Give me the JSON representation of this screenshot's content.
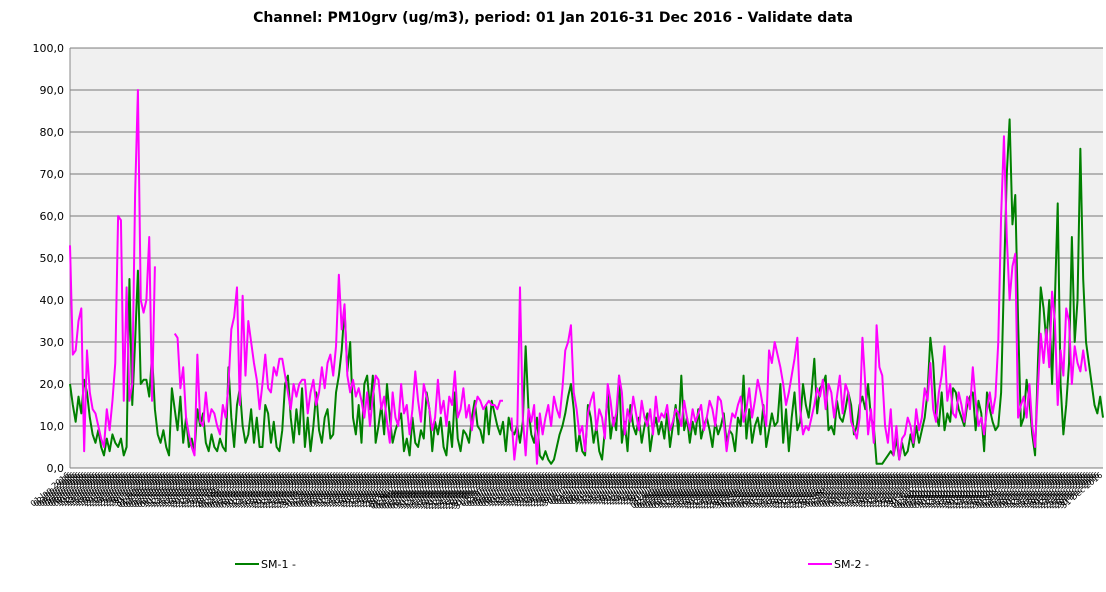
{
  "chart_data": {
    "type": "line",
    "title": "Channel: PM10grv (ug/m3), period: 01 Jan 2016-31 Dec 2016 - Validate data",
    "ylim": [
      0,
      100
    ],
    "yticks": [
      {
        "value": 0,
        "label": "0,0"
      },
      {
        "value": 10,
        "label": "10,0"
      },
      {
        "value": 20,
        "label": "20,0"
      },
      {
        "value": 30,
        "label": "30,0"
      },
      {
        "value": 40,
        "label": "40,0"
      },
      {
        "value": 50,
        "label": "50,0"
      },
      {
        "value": 60,
        "label": "60,0"
      },
      {
        "value": 70,
        "label": "70,0"
      },
      {
        "value": 80,
        "label": "80,0"
      },
      {
        "value": 90,
        "label": "90,0"
      },
      {
        "value": 100,
        "label": "100,0"
      }
    ],
    "grid": true,
    "legend": "bottom",
    "categories": [
      "01 Jan 2016",
      "02 Jan 2016",
      "03 Jan 2016",
      "04 Jan 2016",
      "05 Jan 2016",
      "06 Jan 2016",
      "07 Jan 2016",
      "08 Jan 2016",
      "09 Jan 2016",
      "10 Jan 2016",
      "11 Jan 2016",
      "12 Jan 2016",
      "13 Jan 2016",
      "14 Jan 2016",
      "15 Jan 2016",
      "16 Jan 2016",
      "17 Jan 2016",
      "18 Jan 2016",
      "19 Jan 2016",
      "20 Jan 2016",
      "21 Jan 2016",
      "22 Jan 2016",
      "23 Jan 2016",
      "24 Jan 2016",
      "25 Jan 2016",
      "26 Jan 2016",
      "27 Jan 2016",
      "28 Jan 2016",
      "29 Jan 2016",
      "30 Jan 2016",
      "31 Jan 2016",
      "01 Feb 2016",
      "02 Feb 2016",
      "03 Feb 2016",
      "04 Feb 2016",
      "05 Feb 2016",
      "06 Feb 2016",
      "07 Feb 2016",
      "08 Feb 2016",
      "09 Feb 2016",
      "10 Feb 2016",
      "11 Feb 2016",
      "12 Feb 2016",
      "13 Feb 2016",
      "14 Feb 2016",
      "15 Feb 2016",
      "16 Feb 2016",
      "17 Feb 2016",
      "18 Feb 2016",
      "19 Feb 2016",
      "20 Feb 2016",
      "21 Feb 2016",
      "22 Feb 2016",
      "23 Feb 2016",
      "24 Feb 2016",
      "25 Feb 2016",
      "26 Feb 2016",
      "27 Feb 2016",
      "28 Feb 2016",
      "29 Feb 2016",
      "01 Mar 2016",
      "02 Mar 2016",
      "03 Mar 2016",
      "04 Mar 2016",
      "05 Mar 2016",
      "06 Mar 2016",
      "07 Mar 2016",
      "08 Mar 2016",
      "09 Mar 2016",
      "10 Mar 2016",
      "11 Mar 2016",
      "12 Mar 2016",
      "13 Mar 2016",
      "14 Mar 2016",
      "15 Mar 2016",
      "16 Mar 2016",
      "17 Mar 2016",
      "18 Mar 2016",
      "19 Mar 2016",
      "20 Mar 2016",
      "21 Mar 2016",
      "22 Mar 2016",
      "23 Mar 2016",
      "24 Mar 2016",
      "25 Mar 2016",
      "26 Mar 2016",
      "27 Mar 2016",
      "28 Mar 2016",
      "29 Mar 2016",
      "30 Mar 2016",
      "31 Mar 2016",
      "01 Apr 2016",
      "02 Apr 2016",
      "03 Apr 2016",
      "04 Apr 2016",
      "05 Apr 2016",
      "06 Apr 2016",
      "07 Apr 2016",
      "08 Apr 2016",
      "09 Apr 2016",
      "10 Apr 2016",
      "11 Apr 2016",
      "12 Apr 2016",
      "13 Apr 2016",
      "14 Apr 2016",
      "15 Apr 2016",
      "16 Apr 2016",
      "17 Apr 2016",
      "18 Apr 2016",
      "19 Apr 2016",
      "20 Apr 2016",
      "21 Apr 2016",
      "22 Apr 2016",
      "23 Apr 2016",
      "24 Apr 2016",
      "25 Apr 2016",
      "26 Apr 2016",
      "27 Apr 2016",
      "28 Apr 2016",
      "29 Apr 2016",
      "30 Apr 2016",
      "01 May 2016",
      "02 May 2016",
      "03 May 2016",
      "04 May 2016",
      "05 May 2016",
      "06 May 2016",
      "07 May 2016",
      "08 May 2016",
      "09 May 2016",
      "10 May 2016",
      "11 May 2016",
      "12 May 2016",
      "13 May 2016",
      "14 May 2016",
      "15 May 2016",
      "16 May 2016",
      "17 May 2016",
      "18 May 2016",
      "19 May 2016",
      "20 May 2016",
      "21 May 2016",
      "22 May 2016",
      "23 May 2016",
      "24 May 2016",
      "25 May 2016",
      "26 May 2016",
      "27 May 2016",
      "28 May 2016",
      "29 May 2016",
      "30 May 2016",
      "31 May 2016",
      "01 Jun 2016",
      "02 Jun 2016",
      "03 Jun 2016",
      "04 Jun 2016",
      "05 Jun 2016",
      "06 Jun 2016",
      "07 Jun 2016",
      "08 Jun 2016",
      "09 Jun 2016",
      "10 Jun 2016",
      "11 Jun 2016",
      "12 Jun 2016",
      "13 Jun 2016",
      "14 Jun 2016",
      "15 Jun 2016",
      "16 Jun 2016",
      "17 Jun 2016",
      "18 Jun 2016",
      "19 Jun 2016",
      "20 Jun 2016",
      "21 Jun 2016",
      "22 Jun 2016",
      "23 Jun 2016",
      "24 Jun 2016",
      "25 Jun 2016",
      "26 Jun 2016",
      "27 Jun 2016",
      "28 Jun 2016",
      "29 Jun 2016",
      "30 Jun 2016",
      "01 Jul 2016",
      "02 Jul 2016",
      "03 Jul 2016",
      "04 Jul 2016",
      "05 Jul 2016",
      "06 Jul 2016",
      "07 Jul 2016",
      "08 Jul 2016",
      "09 Jul 2016",
      "10 Jul 2016",
      "11 Jul 2016",
      "12 Jul 2016",
      "13 Jul 2016",
      "14 Jul 2016",
      "15 Jul 2016",
      "16 Jul 2016",
      "17 Jul 2016",
      "18 Jul 2016",
      "19 Jul 2016",
      "20 Jul 2016",
      "21 Jul 2016",
      "22 Jul 2016",
      "23 Jul 2016",
      "24 Jul 2016",
      "25 Jul 2016",
      "26 Jul 2016",
      "27 Jul 2016",
      "28 Jul 2016",
      "29 Jul 2016",
      "30 Jul 2016",
      "31 Jul 2016",
      "01 Aug 2016",
      "02 Aug 2016",
      "03 Aug 2016",
      "04 Aug 2016",
      "05 Aug 2016",
      "06 Aug 2016",
      "07 Aug 2016",
      "08 Aug 2016",
      "09 Aug 2016",
      "10 Aug 2016",
      "11 Aug 2016",
      "12 Aug 2016",
      "13 Aug 2016",
      "14 Aug 2016",
      "15 Aug 2016",
      "16 Aug 2016",
      "17 Aug 2016",
      "18 Aug 2016",
      "19 Aug 2016",
      "20 Aug 2016",
      "21 Aug 2016",
      "22 Aug 2016",
      "23 Aug 2016",
      "24 Aug 2016",
      "25 Aug 2016",
      "26 Aug 2016",
      "27 Aug 2016",
      "28 Aug 2016",
      "29 Aug 2016",
      "30 Aug 2016",
      "31 Aug 2016",
      "01 Sep 2016",
      "02 Sep 2016",
      "03 Sep 2016",
      "04 Sep 2016",
      "05 Sep 2016",
      "06 Sep 2016",
      "07 Sep 2016",
      "08 Sep 2016",
      "09 Sep 2016",
      "10 Sep 2016",
      "11 Sep 2016",
      "12 Sep 2016",
      "13 Sep 2016",
      "14 Sep 2016",
      "15 Sep 2016",
      "16 Sep 2016",
      "17 Sep 2016",
      "18 Sep 2016",
      "19 Sep 2016",
      "20 Sep 2016",
      "21 Sep 2016",
      "22 Sep 2016",
      "23 Sep 2016",
      "24 Sep 2016",
      "25 Sep 2016",
      "26 Sep 2016",
      "27 Sep 2016",
      "28 Sep 2016",
      "29 Sep 2016",
      "30 Sep 2016",
      "01 Oct 2016",
      "02 Oct 2016",
      "03 Oct 2016",
      "04 Oct 2016",
      "05 Oct 2016",
      "06 Oct 2016",
      "07 Oct 2016",
      "08 Oct 2016",
      "09 Oct 2016",
      "10 Oct 2016",
      "11 Oct 2016",
      "12 Oct 2016",
      "13 Oct 2016",
      "14 Oct 2016",
      "15 Oct 2016",
      "16 Oct 2016",
      "17 Oct 2016",
      "18 Oct 2016",
      "19 Oct 2016",
      "20 Oct 2016",
      "21 Oct 2016",
      "22 Oct 2016",
      "23 Oct 2016",
      "24 Oct 2016",
      "25 Oct 2016",
      "26 Oct 2016",
      "27 Oct 2016",
      "28 Oct 2016",
      "29 Oct 2016",
      "30 Oct 2016",
      "31 Oct 2016",
      "01 Nov 2016",
      "02 Nov 2016",
      "03 Nov 2016",
      "04 Nov 2016",
      "05 Nov 2016",
      "06 Nov 2016",
      "07 Nov 2016",
      "08 Nov 2016",
      "09 Nov 2016",
      "10 Nov 2016",
      "11 Nov 2016",
      "12 Nov 2016",
      "13 Nov 2016",
      "14 Nov 2016",
      "15 Nov 2016",
      "16 Nov 2016",
      "17 Nov 2016",
      "18 Nov 2016",
      "19 Nov 2016",
      "20 Nov 2016",
      "21 Nov 2016",
      "22 Nov 2016",
      "23 Nov 2016",
      "24 Nov 2016",
      "25 Nov 2016",
      "26 Nov 2016",
      "27 Nov 2016",
      "28 Nov 2016",
      "29 Nov 2016",
      "30 Nov 2016",
      "01 Dec 2016",
      "02 Dec 2016",
      "03 Dec 2016",
      "04 Dec 2016",
      "05 Dec 2016",
      "06 Dec 2016",
      "07 Dec 2016",
      "08 Dec 2016",
      "09 Dec 2016",
      "10 Dec 2016",
      "11 Dec 2016",
      "12 Dec 2016",
      "13 Dec 2016",
      "14 Dec 2016",
      "15 Dec 2016",
      "16 Dec 2016",
      "17 Dec 2016",
      "18 Dec 2016",
      "19 Dec 2016",
      "20 Dec 2016",
      "21 Dec 2016",
      "22 Dec 2016",
      "23 Dec 2016",
      "24 Dec 2016",
      "25 Dec 2016",
      "26 Dec 2016",
      "27 Dec 2016",
      "28 Dec 2016",
      "29 Dec 2016",
      "30 Dec 2016",
      "31 Dec 2016"
    ],
    "series": [
      {
        "name": "SM-1 -",
        "color": "#008000",
        "values": [
          20,
          15,
          11,
          17,
          13,
          21,
          18,
          12,
          8,
          6,
          9,
          5,
          3,
          7,
          4,
          8,
          6,
          5,
          7,
          3,
          5,
          45,
          15,
          30,
          47,
          20,
          21,
          21,
          17,
          27,
          14,
          8,
          6,
          9,
          5,
          3,
          19,
          14,
          9,
          17,
          6,
          12,
          5,
          7,
          4,
          14,
          10,
          13,
          6,
          4,
          8,
          5,
          4,
          7,
          5,
          4,
          24,
          12,
          5,
          15,
          19,
          10,
          6,
          8,
          14,
          6,
          12,
          5,
          5,
          15,
          13,
          6,
          11,
          5,
          4,
          9,
          20,
          22,
          12,
          6,
          14,
          8,
          19,
          5,
          12,
          4,
          10,
          18,
          9,
          6,
          12,
          14,
          7,
          8,
          18,
          22,
          28,
          38,
          23,
          30,
          12,
          8,
          15,
          6,
          20,
          22,
          14,
          22,
          6,
          10,
          15,
          8,
          20,
          12,
          6,
          9,
          11,
          13,
          4,
          7,
          3,
          12,
          6,
          5,
          9,
          7,
          18,
          14,
          4,
          11,
          8,
          12,
          5,
          3,
          11,
          5,
          18,
          7,
          4,
          9,
          8,
          6,
          12,
          16,
          10,
          9,
          6,
          15,
          8,
          16,
          13,
          10,
          8,
          11,
          4,
          12,
          9,
          8,
          10,
          6,
          11,
          29,
          14,
          8,
          6,
          12,
          3,
          2,
          4,
          2,
          1,
          2,
          5,
          8,
          10,
          13,
          17,
          20,
          14,
          4,
          8,
          4,
          3,
          15,
          12,
          6,
          10,
          4,
          2,
          9,
          18,
          7,
          12,
          9,
          22,
          6,
          11,
          4,
          15,
          10,
          8,
          12,
          6,
          10,
          13,
          4,
          9,
          12,
          8,
          11,
          7,
          13,
          5,
          10,
          15,
          8,
          22,
          9,
          12,
          6,
          11,
          8,
          14,
          7,
          10,
          12,
          9,
          5,
          11,
          8,
          10,
          13,
          6,
          9,
          8,
          4,
          12,
          10,
          22,
          7,
          14,
          6,
          10,
          12,
          8,
          15,
          5,
          9,
          13,
          10,
          11,
          20,
          6,
          14,
          4,
          12,
          18,
          9,
          11,
          20,
          15,
          12,
          18,
          26,
          13,
          19,
          20,
          22,
          9,
          10,
          8,
          16,
          12,
          11,
          14,
          18,
          15,
          8,
          10,
          15,
          17,
          14,
          20,
          12,
          10,
          1,
          1,
          1,
          2,
          3,
          4,
          3,
          7,
          2,
          6,
          3,
          4,
          8,
          5,
          10,
          6,
          9,
          12,
          18,
          31,
          25,
          13,
          10,
          18,
          9,
          13,
          11,
          19,
          18,
          14,
          12,
          10,
          15,
          17,
          18,
          9,
          16,
          13,
          4,
          18,
          14,
          11,
          9,
          10,
          18,
          45,
          70,
          83,
          58,
          65,
          35,
          10,
          12,
          21,
          16,
          8,
          3,
          25,
          43,
          38,
          30,
          40,
          20,
          40,
          63,
          20,
          8,
          15,
          25,
          55,
          30,
          40,
          76,
          45,
          30,
          25,
          20,
          15,
          13,
          17,
          12
        ]
      },
      {
        "name": "SM-2 -",
        "color": "#ff00ff",
        "values": [
          53,
          27,
          28,
          35,
          38,
          4,
          28,
          18,
          14,
          13,
          10,
          7,
          5,
          14,
          9,
          16,
          25,
          60,
          59,
          16,
          43,
          16,
          20,
          65,
          90,
          40,
          37,
          40,
          55,
          16,
          48,
          null,
          null,
          null,
          null,
          null,
          null,
          32,
          31,
          19,
          24,
          12,
          8,
          5,
          3,
          27,
          11,
          10,
          18,
          11,
          14,
          13,
          10,
          8,
          15,
          12,
          20,
          33,
          36,
          43,
          15,
          41,
          22,
          35,
          30,
          25,
          21,
          14,
          20,
          27,
          19,
          18,
          24,
          22,
          26,
          26,
          22,
          18,
          14,
          20,
          17,
          20,
          21,
          21,
          13,
          18,
          21,
          15,
          18,
          24,
          19,
          25,
          27,
          22,
          29,
          46,
          33,
          39,
          22,
          18,
          21,
          17,
          19,
          16,
          12,
          18,
          10,
          17,
          22,
          21,
          14,
          17,
          11,
          6,
          18,
          12,
          10,
          20,
          13,
          15,
          8,
          14,
          23,
          16,
          11,
          20,
          17,
          14,
          9,
          12,
          21,
          13,
          16,
          10,
          17,
          15,
          23,
          12,
          14,
          19,
          12,
          15,
          9,
          14,
          17,
          16,
          14,
          15,
          16,
          15,
          15,
          14,
          16,
          16,
          null,
          null,
          12,
          2,
          8,
          43,
          12,
          3,
          14,
          11,
          15,
          1,
          13,
          8,
          12,
          15,
          10,
          17,
          14,
          12,
          19,
          28,
          30,
          34,
          18,
          14,
          8,
          10,
          4,
          13,
          16,
          18,
          9,
          14,
          12,
          7,
          20,
          16,
          10,
          13,
          22,
          18,
          8,
          14,
          11,
          17,
          13,
          9,
          16,
          12,
          10,
          14,
          8,
          17,
          11,
          13,
          12,
          15,
          9,
          11,
          14,
          13,
          10,
          16,
          12,
          9,
          14,
          11,
          13,
          15,
          9,
          12,
          16,
          14,
          10,
          17,
          16,
          11,
          4,
          9,
          13,
          12,
          15,
          17,
          11,
          14,
          19,
          12,
          16,
          21,
          18,
          14,
          10,
          28,
          25,
          30,
          27,
          24,
          20,
          15,
          18,
          22,
          26,
          31,
          14,
          8,
          10,
          9,
          12,
          15,
          19,
          17,
          21,
          14,
          20,
          18,
          12,
          17,
          22,
          13,
          20,
          18,
          11,
          9,
          7,
          12,
          31,
          20,
          8,
          14,
          6,
          34,
          24,
          22,
          10,
          6,
          14,
          3,
          10,
          2,
          7,
          8,
          12,
          10,
          6,
          14,
          9,
          12,
          19,
          16,
          25,
          14,
          11,
          18,
          22,
          29,
          16,
          20,
          13,
          12,
          18,
          15,
          11,
          17,
          14,
          24,
          16,
          10,
          12,
          8,
          14,
          18,
          13,
          17,
          30,
          60,
          79,
          55,
          40,
          48,
          51,
          12,
          15,
          17,
          12,
          20,
          10,
          5,
          19,
          32,
          25,
          33,
          24,
          42,
          35,
          15,
          28,
          22,
          38,
          35,
          20,
          29,
          25,
          23,
          28,
          23,
          null,
          null,
          null,
          null,
          null,
          null
        ]
      }
    ]
  }
}
